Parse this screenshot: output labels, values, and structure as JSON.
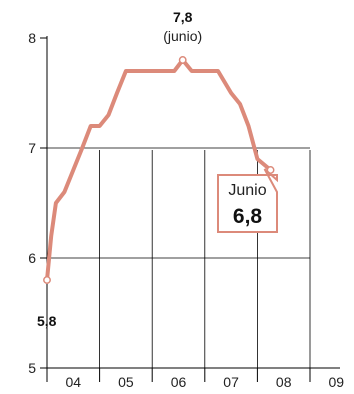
{
  "chart_data": {
    "type": "line",
    "title": "",
    "xlabel": "",
    "ylabel": "",
    "ylim": [
      5,
      8.2
    ],
    "yticks": [
      "5",
      "6",
      "7",
      "8"
    ],
    "categories": [
      "04",
      "05",
      "06",
      "07",
      "08",
      "09"
    ],
    "grid": true,
    "series": [
      {
        "color": "#dc8a7a",
        "points": [
          {
            "x": 2004.0,
            "y": 5.8
          },
          {
            "x": 2004.08,
            "y": 6.2
          },
          {
            "x": 2004.17,
            "y": 6.5
          },
          {
            "x": 2004.33,
            "y": 6.6
          },
          {
            "x": 2004.5,
            "y": 6.8
          },
          {
            "x": 2004.67,
            "y": 7.0
          },
          {
            "x": 2004.83,
            "y": 7.2
          },
          {
            "x": 2005.0,
            "y": 7.2
          },
          {
            "x": 2005.17,
            "y": 7.3
          },
          {
            "x": 2005.33,
            "y": 7.5
          },
          {
            "x": 2005.5,
            "y": 7.7
          },
          {
            "x": 2006.0,
            "y": 7.7
          },
          {
            "x": 2006.42,
            "y": 7.7
          },
          {
            "x": 2006.58,
            "y": 7.8
          },
          {
            "x": 2006.75,
            "y": 7.7
          },
          {
            "x": 2007.25,
            "y": 7.7
          },
          {
            "x": 2007.5,
            "y": 7.5
          },
          {
            "x": 2007.67,
            "y": 7.4
          },
          {
            "x": 2007.83,
            "y": 7.2
          },
          {
            "x": 2008.0,
            "y": 6.9
          },
          {
            "x": 2008.25,
            "y": 6.8
          }
        ]
      }
    ],
    "annotations": {
      "start": {
        "value": "5,8"
      },
      "peak": {
        "value": "7,8",
        "note": "(junio)"
      },
      "end": {
        "label": "Junio",
        "value": "6,8"
      }
    }
  },
  "colors": {
    "line": "#dc8a7a",
    "callout_border": "#dc8a7a",
    "grid": "#000000"
  }
}
